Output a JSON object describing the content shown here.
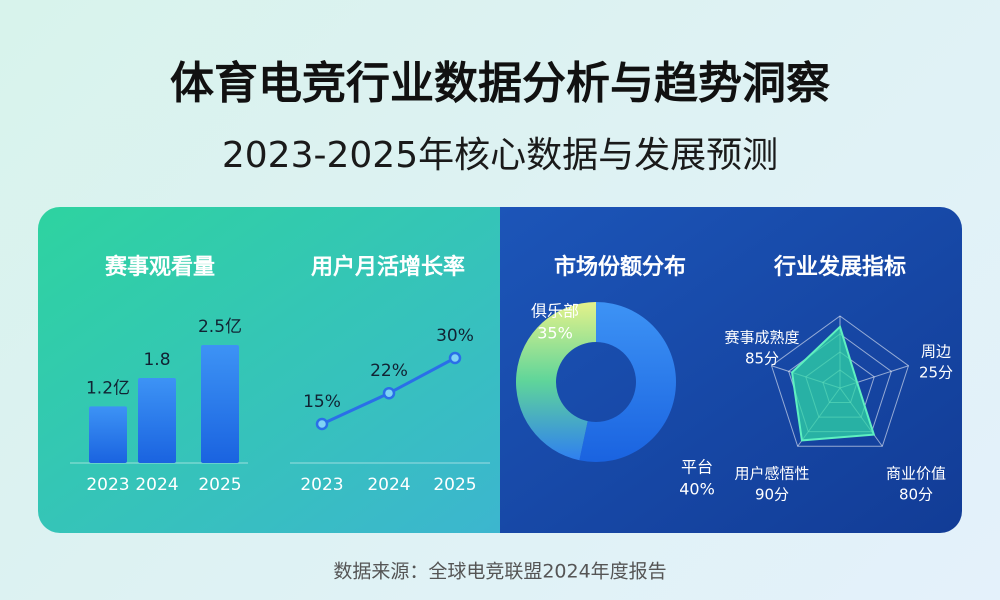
{
  "header": {
    "title": "体育电竞行业数据分析与趋势洞察",
    "subtitle": "2023-2025年核心数据与发展预测"
  },
  "source": "数据来源：全球电竞联盟2024年度报告",
  "chart_data": [
    {
      "type": "bar",
      "title": "赛事观看量",
      "categories": [
        "2023",
        "2024",
        "2025"
      ],
      "values": [
        1.2,
        1.8,
        2.5
      ],
      "value_labels": [
        "1.2亿",
        "1.8",
        "2.5亿"
      ],
      "color": "#2f7ff0"
    },
    {
      "type": "line",
      "title": "用户月活增长率",
      "categories": [
        "2023",
        "2024",
        "2025"
      ],
      "values": [
        15,
        22,
        30
      ],
      "value_labels": [
        "15%",
        "22%",
        "30%"
      ],
      "color": "#2a6fe8"
    },
    {
      "type": "pie",
      "title": "市场份额分布",
      "categories": [
        "平台",
        "俱乐部"
      ],
      "values": [
        40,
        35
      ],
      "value_labels": [
        "40%",
        "35%"
      ],
      "colors": [
        "#2f7ff0",
        "#8fe07a"
      ]
    },
    {
      "type": "radar",
      "title": "行业发展指标",
      "categories": [
        "赛事成熟度",
        "周边",
        "商业价值",
        "用户感悟性",
        null
      ],
      "values": [
        85,
        25,
        80,
        90,
        70
      ],
      "value_labels": [
        "85分",
        "25分",
        "80分",
        "90分",
        null
      ],
      "rlim": [
        0,
        100
      ],
      "color": "#2fd6a6"
    }
  ]
}
